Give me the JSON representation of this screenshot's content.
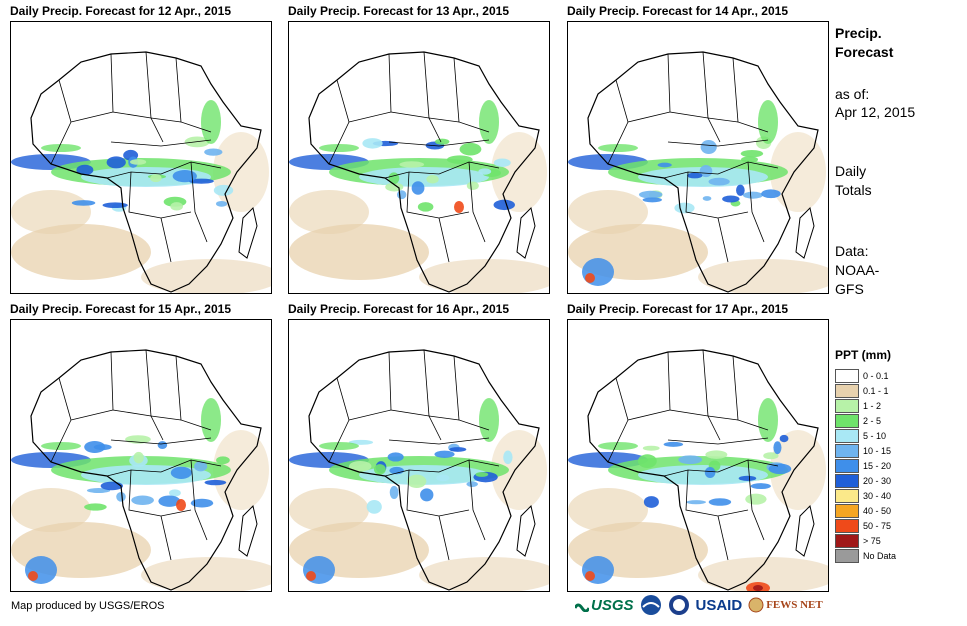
{
  "panels": [
    {
      "title": "Daily Precip. Forecast for 12 Apr., 2015"
    },
    {
      "title": "Daily Precip. Forecast for 13 Apr., 2015"
    },
    {
      "title": "Daily Precip. Forecast for 14 Apr., 2015"
    },
    {
      "title": "Daily Precip. Forecast for 15 Apr., 2015"
    },
    {
      "title": "Daily Precip. Forecast for 16 Apr., 2015"
    },
    {
      "title": "Daily Precip. Forecast for 17 Apr., 2015"
    }
  ],
  "side": {
    "title_line1": "Precip.",
    "title_line2": "Forecast",
    "asof_label": "as of:",
    "asof_date": "Apr 12, 2015",
    "totals_line1": "Daily",
    "totals_line2": "Totals",
    "data_label": "Data:",
    "data_line1": "NOAA-",
    "data_line2": "GFS"
  },
  "legend": {
    "title": "PPT (mm)",
    "items": [
      {
        "label": "0 - 0.1",
        "color": "#ffffff"
      },
      {
        "label": "0.1 - 1",
        "color": "#e8d2ae"
      },
      {
        "label": "1 - 2",
        "color": "#b7f2a8"
      },
      {
        "label": "2 - 5",
        "color": "#6fe36b"
      },
      {
        "label": "5 - 10",
        "color": "#a9e8f5"
      },
      {
        "label": "10 - 15",
        "color": "#6fb4ef"
      },
      {
        "label": "15 - 20",
        "color": "#3f8fea"
      },
      {
        "label": "20 - 30",
        "color": "#1f5fd8"
      },
      {
        "label": "30 - 40",
        "color": "#fbe98a"
      },
      {
        "label": "40 - 50",
        "color": "#f5a623"
      },
      {
        "label": "50 - 75",
        "color": "#ef4a1a"
      },
      {
        "label": "> 75",
        "color": "#a01818"
      },
      {
        "label": "No Data",
        "color": "#9a9a9a"
      }
    ]
  },
  "footer": {
    "credit": "Map produced by USGS/EROS"
  },
  "logos": {
    "usgs": "USGS",
    "usaid": "USAID",
    "fews": "FEWS NET"
  }
}
